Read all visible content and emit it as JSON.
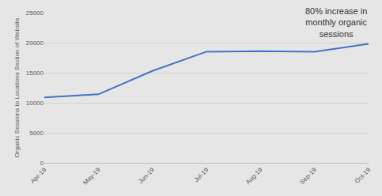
{
  "chart_data": {
    "type": "line",
    "y_label": "Organic Sessions to Locations Section of Website",
    "annotation": [
      "80% increase in",
      "monthly organic",
      "sessions"
    ],
    "categories": [
      "Apr-19",
      "May-19",
      "Jun-19",
      "Jul-19",
      "Aug-19",
      "Sep-19",
      "Oct-19"
    ],
    "values": [
      10900,
      11400,
      15300,
      18500,
      18600,
      18500,
      19800
    ],
    "color": "#4472c4",
    "ylim": [
      0,
      25000
    ],
    "yticks": [
      0,
      5000,
      10000,
      15000,
      20000,
      25000
    ],
    "grid": true
  }
}
